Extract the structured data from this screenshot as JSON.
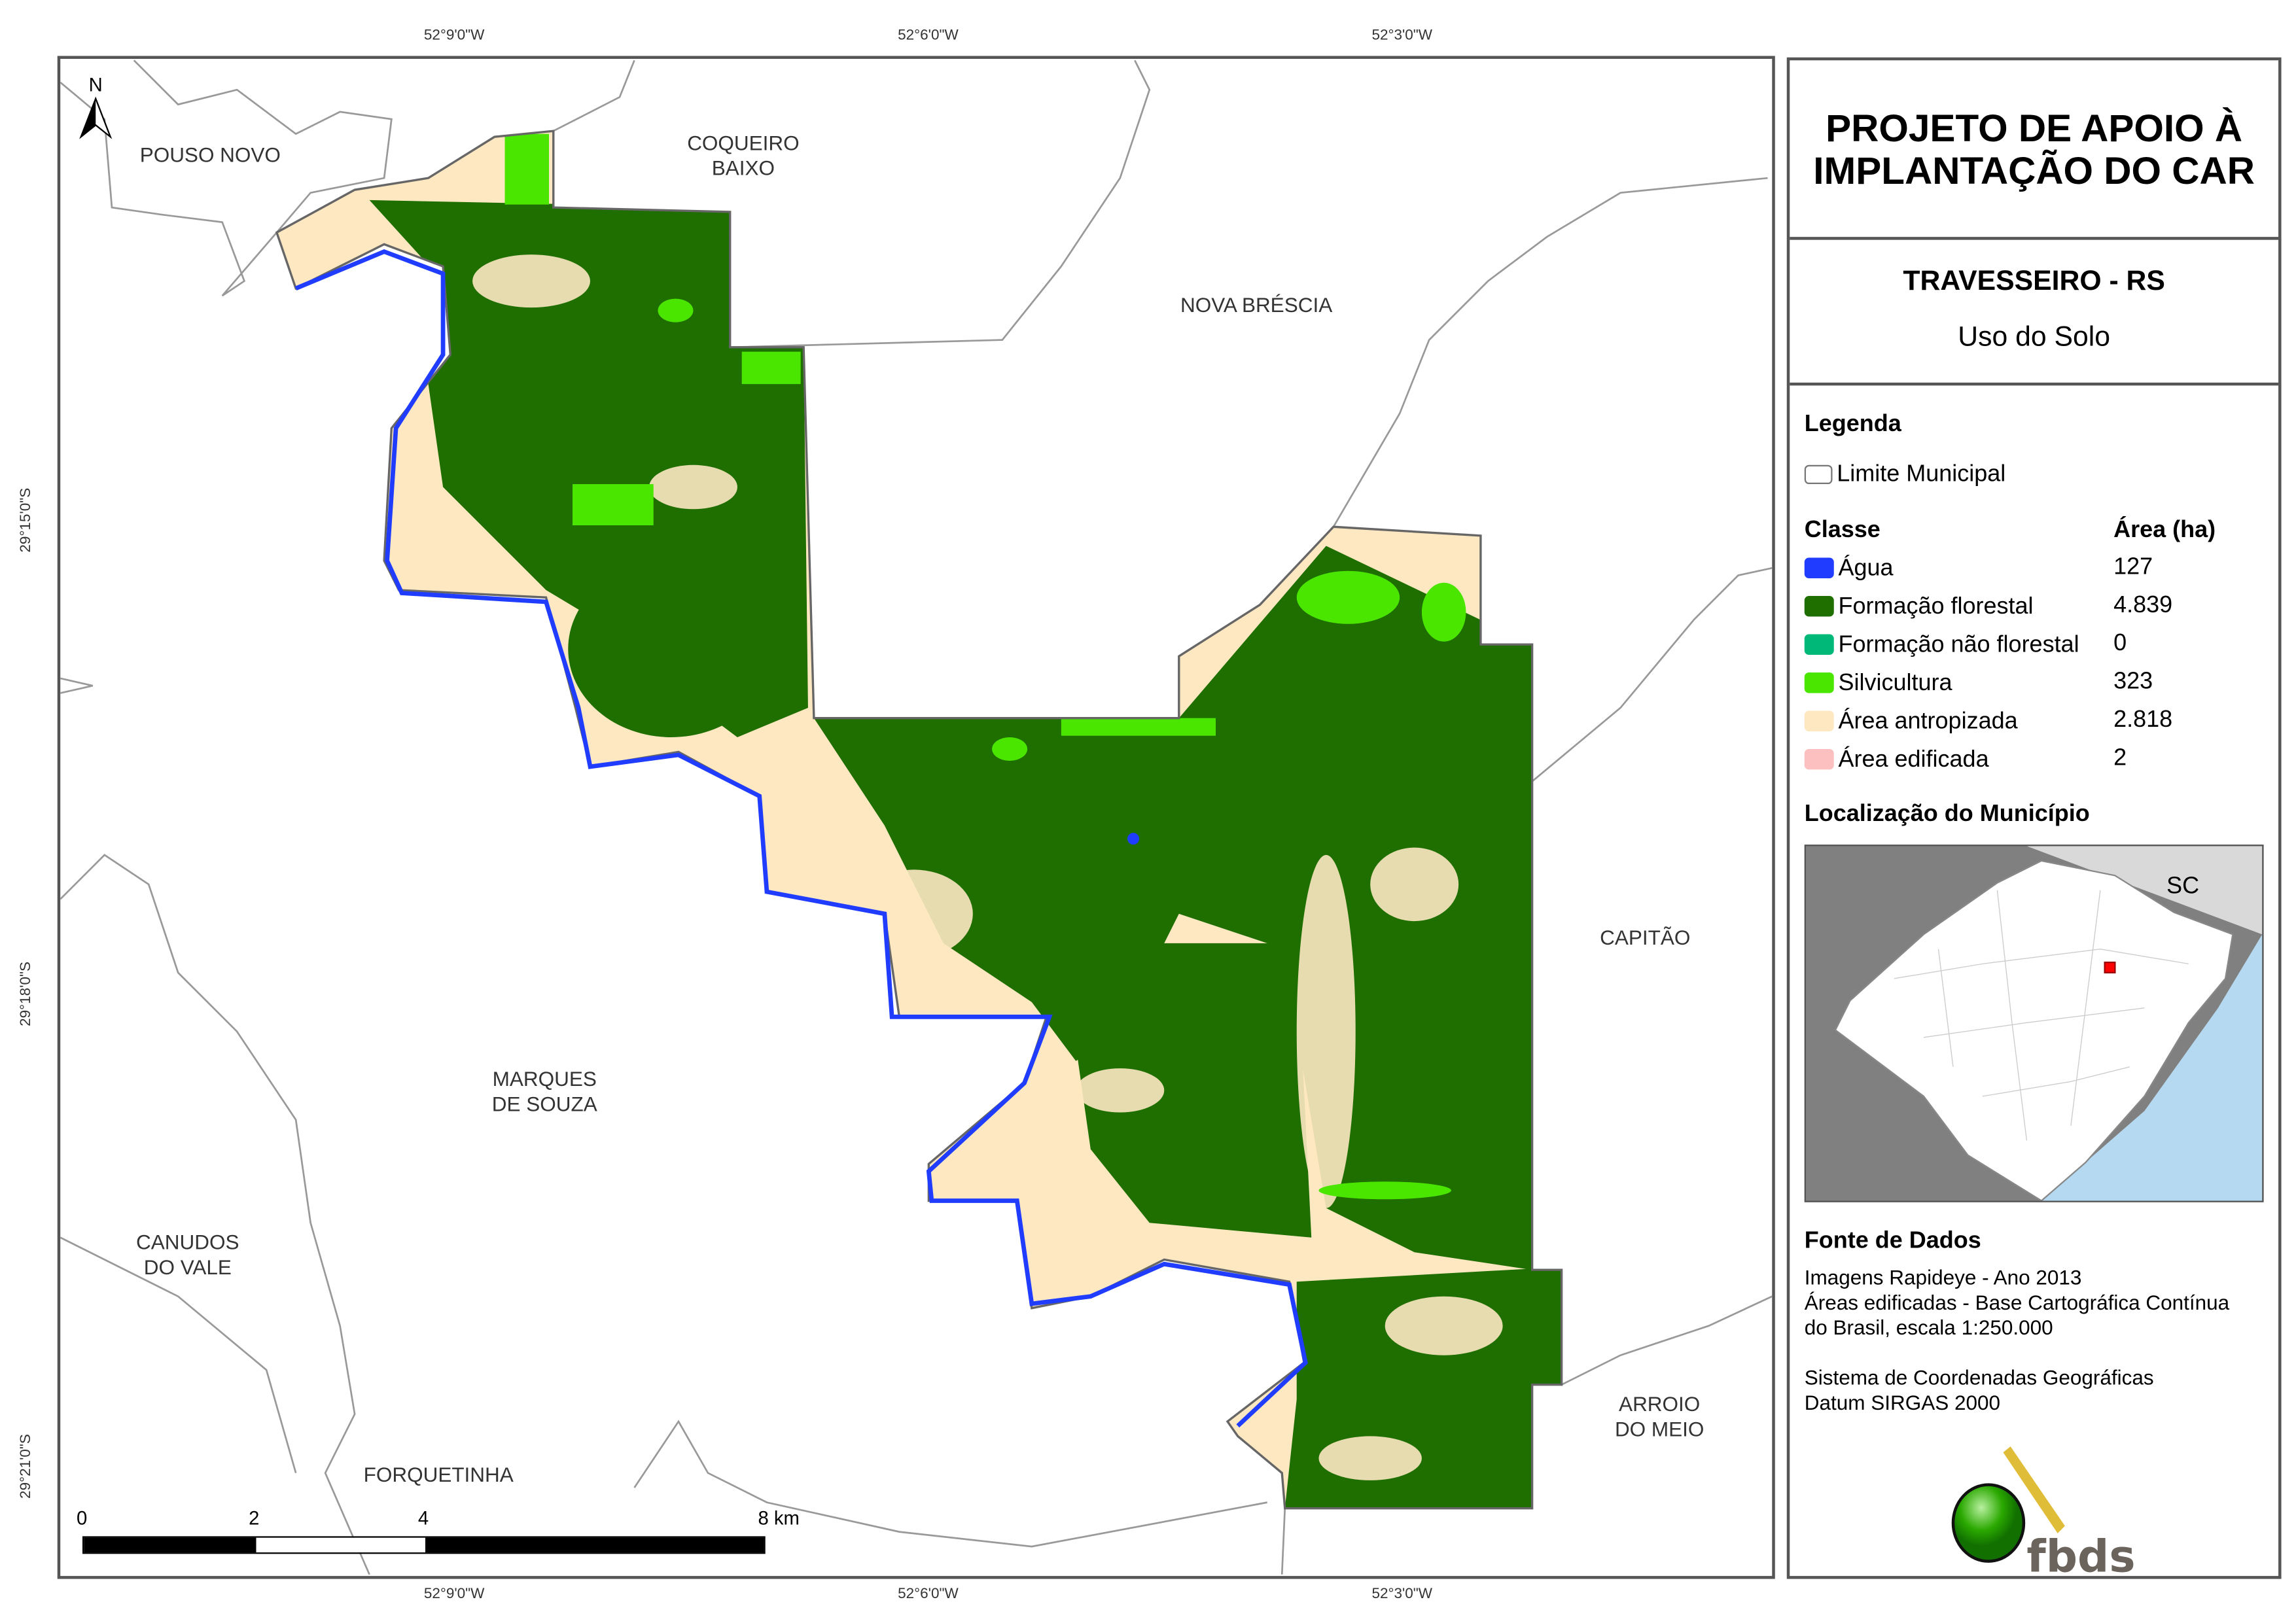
{
  "title": "PROJETO DE APOIO À IMPLANTAÇÃO DO CAR",
  "municipality": "TRAVESSEIRO - RS",
  "subtitle": "Uso do Solo",
  "legend": {
    "heading": "Legenda",
    "boundary_label": "Limite Municipal",
    "class_header": "Classe",
    "area_header": "Área (ha)",
    "classes": [
      {
        "label": "Água",
        "area": "127",
        "color": "#1f3cff"
      },
      {
        "label": "Formação florestal",
        "area": "4.839",
        "color": "#1e6e00"
      },
      {
        "label": "Formação não florestal",
        "area": "0",
        "color": "#00b878"
      },
      {
        "label": "Silvicultura",
        "area": "323",
        "color": "#4be600"
      },
      {
        "label": "Área antropizada",
        "area": "2.818",
        "color": "#fde8c2"
      },
      {
        "label": "Área edificada",
        "area": "2",
        "color": "#fcc0c0"
      }
    ]
  },
  "location": {
    "heading": "Localização do Município",
    "label_sc": "SC"
  },
  "sources": {
    "heading": "Fonte de Dados",
    "line1": "Imagens Rapideye - Ano 2013",
    "line2": "Áreas edificadas - Base Cartográfica Contínua",
    "line3": "do Brasil, escala 1:250.000",
    "line4": "Sistema de Coordenadas Geográficas",
    "line5": "Datum SIRGAS 2000"
  },
  "logo": "fbds",
  "map": {
    "north": "N",
    "lon_ticks": [
      "52°9'0\"W",
      "52°6'0\"W",
      "52°3'0\"W"
    ],
    "lat_ticks": [
      "29°15'0\"S",
      "29°18'0\"S",
      "29°21'0\"S"
    ],
    "places": {
      "pouso_novo": "POUSO NOVO",
      "coqueiro1": "COQUEIRO",
      "coqueiro2": "BAIXO",
      "nova_brescia": "NOVA BRÉSCIA",
      "capitao": "CAPITÃO",
      "marques1": "MARQUES",
      "marques2": "DE SOUZA",
      "canudos1": "CANUDOS",
      "canudos2": "DO VALE",
      "arroio1": "ARROIO",
      "arroio2": "DO MEIO",
      "forquetinha": "FORQUETINHA"
    },
    "scale": {
      "l0": "0",
      "l2": "2",
      "l4": "4",
      "l8": "8 km"
    }
  }
}
